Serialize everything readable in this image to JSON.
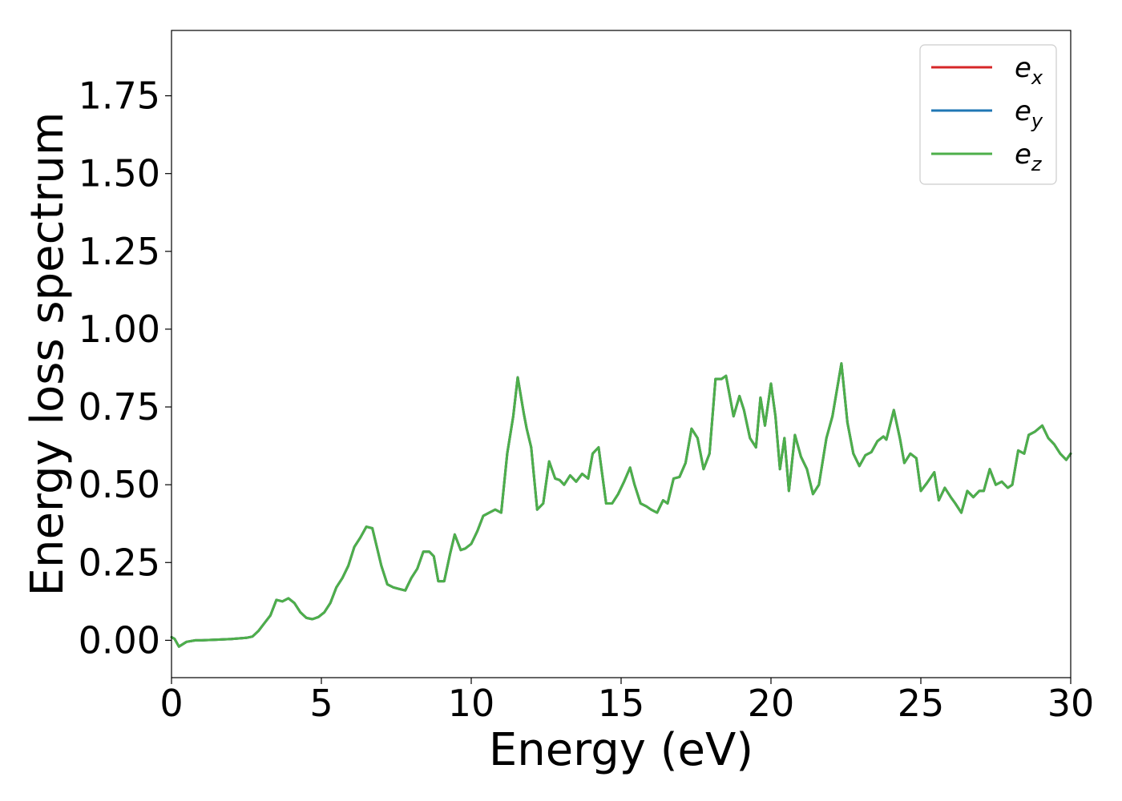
{
  "chart_data": {
    "type": "line",
    "xlabel": "Energy (eV)",
    "ylabel": "Energy loss spectrum",
    "xlim": [
      0,
      30
    ],
    "ylim": [
      -0.12,
      1.96
    ],
    "xticks": [
      0,
      5,
      10,
      15,
      20,
      25,
      30
    ],
    "yticks": [
      0.0,
      0.25,
      0.5,
      0.75,
      1.0,
      1.25,
      1.5,
      1.75
    ],
    "xtick_labels": [
      "0",
      "5",
      "10",
      "15",
      "20",
      "25",
      "30"
    ],
    "ytick_labels": [
      "0.00",
      "0.25",
      "0.50",
      "0.75",
      "1.00",
      "1.25",
      "1.50",
      "1.75"
    ],
    "grid": false,
    "legend_position": "top-right",
    "legend": [
      {
        "base": "e",
        "sub": "x",
        "color": "#d62728"
      },
      {
        "base": "e",
        "sub": "y",
        "color": "#1f77b4"
      },
      {
        "base": "e",
        "sub": "z",
        "color": "#4daf4a"
      }
    ],
    "x": [
      0.0,
      0.1,
      0.25,
      0.5,
      0.8,
      1.0,
      1.5,
      2.0,
      2.5,
      2.7,
      2.9,
      3.1,
      3.3,
      3.5,
      3.7,
      3.9,
      4.1,
      4.3,
      4.5,
      4.7,
      4.9,
      5.1,
      5.3,
      5.5,
      5.7,
      5.9,
      6.1,
      6.3,
      6.5,
      6.7,
      6.85,
      7.0,
      7.2,
      7.4,
      7.6,
      7.8,
      8.0,
      8.2,
      8.4,
      8.6,
      8.75,
      8.9,
      9.1,
      9.3,
      9.45,
      9.65,
      9.8,
      10.0,
      10.2,
      10.4,
      10.6,
      10.8,
      11.0,
      11.2,
      11.4,
      11.55,
      11.75,
      11.85,
      12.0,
      12.2,
      12.4,
      12.6,
      12.8,
      12.95,
      13.1,
      13.3,
      13.5,
      13.7,
      13.9,
      14.05,
      14.25,
      14.5,
      14.7,
      14.9,
      15.1,
      15.3,
      15.45,
      15.65,
      15.85,
      16.0,
      16.2,
      16.4,
      16.55,
      16.75,
      16.95,
      17.15,
      17.35,
      17.55,
      17.75,
      17.95,
      18.15,
      18.35,
      18.5,
      18.75,
      18.95,
      19.1,
      19.3,
      19.5,
      19.65,
      19.8,
      20.0,
      20.15,
      20.3,
      20.45,
      20.6,
      20.8,
      21.0,
      21.2,
      21.4,
      21.6,
      21.85,
      22.05,
      22.35,
      22.55,
      22.75,
      22.95,
      23.15,
      23.35,
      23.55,
      23.75,
      23.85,
      24.1,
      24.3,
      24.45,
      24.65,
      24.85,
      25.0,
      25.2,
      25.45,
      25.6,
      25.8,
      26.0,
      26.15,
      26.35,
      26.55,
      26.75,
      26.95,
      27.1,
      27.3,
      27.5,
      27.7,
      27.9,
      28.05,
      28.25,
      28.45,
      28.6,
      28.8,
      29.05,
      29.25,
      29.45,
      29.65,
      29.85,
      30.0
    ],
    "y": [
      0.01,
      0.005,
      -0.02,
      -0.005,
      0.0,
      0.0,
      0.002,
      0.004,
      0.008,
      0.012,
      0.03,
      0.055,
      0.08,
      0.13,
      0.125,
      0.135,
      0.12,
      0.09,
      0.072,
      0.068,
      0.075,
      0.09,
      0.12,
      0.17,
      0.2,
      0.24,
      0.3,
      0.33,
      0.365,
      0.36,
      0.3,
      0.24,
      0.18,
      0.17,
      0.165,
      0.16,
      0.2,
      0.23,
      0.285,
      0.285,
      0.27,
      0.19,
      0.19,
      0.28,
      0.34,
      0.29,
      0.295,
      0.31,
      0.35,
      0.4,
      0.41,
      0.42,
      0.41,
      0.6,
      0.72,
      0.845,
      0.73,
      0.68,
      0.62,
      0.42,
      0.44,
      0.575,
      0.52,
      0.515,
      0.5,
      0.53,
      0.51,
      0.535,
      0.52,
      0.6,
      0.62,
      0.44,
      0.44,
      0.47,
      0.51,
      0.555,
      0.5,
      0.44,
      0.43,
      0.42,
      0.41,
      0.45,
      0.44,
      0.52,
      0.525,
      0.57,
      0.68,
      0.65,
      0.55,
      0.6,
      0.84,
      0.84,
      0.85,
      0.72,
      0.785,
      0.74,
      0.65,
      0.62,
      0.78,
      0.69,
      0.825,
      0.72,
      0.55,
      0.65,
      0.48,
      0.66,
      0.59,
      0.55,
      0.47,
      0.5,
      0.65,
      0.72,
      0.89,
      0.7,
      0.6,
      0.56,
      0.595,
      0.605,
      0.64,
      0.655,
      0.645,
      0.74,
      0.65,
      0.57,
      0.6,
      0.585,
      0.48,
      0.505,
      0.54,
      0.45,
      0.49,
      0.46,
      0.44,
      0.41,
      0.48,
      0.46,
      0.48,
      0.48,
      0.55,
      0.5,
      0.51,
      0.49,
      0.5,
      0.61,
      0.6,
      0.66,
      0.67,
      0.69,
      0.65,
      0.63,
      0.6,
      0.58,
      0.6
    ]
  }
}
